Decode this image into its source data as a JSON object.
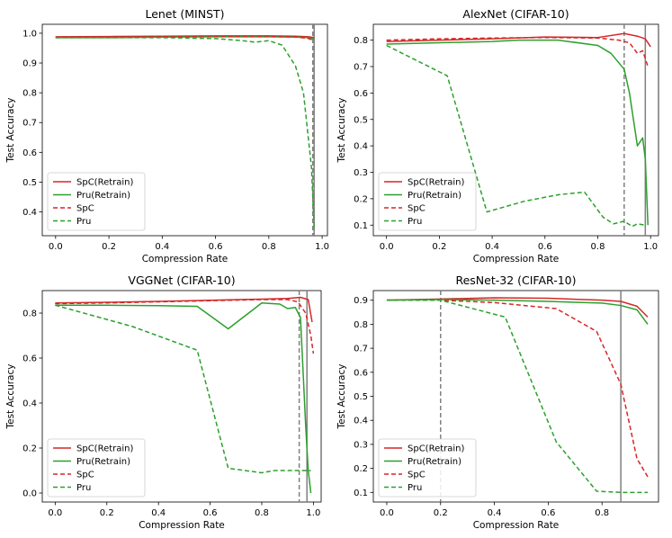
{
  "colors": {
    "spc": "#d62728",
    "pru": "#2ca02c",
    "vline": "#808080"
  },
  "legend_labels": [
    "SpC(Retrain)",
    "Pru(Retrain)",
    "SpC",
    "Pru"
  ],
  "chart_data": [
    {
      "type": "line",
      "title": "Lenet (MINST)",
      "xlabel": "Compression Rate",
      "ylabel": "Test Accuracy",
      "xlim": [
        -0.05,
        1.02
      ],
      "ylim": [
        0.32,
        1.03
      ],
      "xticks": [
        0.0,
        0.2,
        0.4,
        0.6,
        0.8,
        1.0
      ],
      "xtick_labels": [
        "0.0",
        "0.2",
        "0.4",
        "0.6",
        "0.8",
        "1.0"
      ],
      "yticks": [
        0.4,
        0.5,
        0.6,
        0.7,
        0.8,
        0.9,
        1.0
      ],
      "ytick_labels": [
        "0.4",
        "0.5",
        "0.6",
        "0.7",
        "0.8",
        "0.9",
        "1.0"
      ],
      "vlines": [
        {
          "x": 0.965,
          "style": "dashed"
        },
        {
          "x": 0.97,
          "style": "solid"
        }
      ],
      "legend_position": "lower-left",
      "series": [
        {
          "name": "SpC(Retrain)",
          "x": [
            0.0,
            0.2,
            0.4,
            0.6,
            0.8,
            0.9,
            0.95,
            0.97
          ],
          "y": [
            0.988,
            0.989,
            0.99,
            0.991,
            0.991,
            0.99,
            0.988,
            0.985
          ]
        },
        {
          "name": "Pru(Retrain)",
          "x": [
            0.0,
            0.2,
            0.4,
            0.6,
            0.8,
            0.9,
            0.95,
            0.97
          ],
          "y": [
            0.985,
            0.985,
            0.987,
            0.988,
            0.988,
            0.987,
            0.985,
            0.98
          ]
        },
        {
          "name": "SpC",
          "x": [
            0.0,
            0.2,
            0.4,
            0.6,
            0.8,
            0.9,
            0.95,
            0.97
          ],
          "y": [
            0.987,
            0.988,
            0.989,
            0.99,
            0.989,
            0.988,
            0.982,
            0.975
          ]
        },
        {
          "name": "Pru",
          "x": [
            0.0,
            0.2,
            0.4,
            0.6,
            0.7,
            0.75,
            0.8,
            0.85,
            0.9,
            0.93,
            0.96,
            0.97
          ],
          "y": [
            0.985,
            0.985,
            0.985,
            0.982,
            0.975,
            0.97,
            0.975,
            0.96,
            0.89,
            0.8,
            0.55,
            0.35
          ]
        }
      ]
    },
    {
      "type": "line",
      "title": "AlexNet (CIFAR-10)",
      "xlabel": "Compression Rate",
      "ylabel": "Test Accuracy",
      "xlim": [
        -0.05,
        1.03
      ],
      "ylim": [
        0.06,
        0.86
      ],
      "xticks": [
        0.0,
        0.2,
        0.4,
        0.6,
        0.8,
        1.0
      ],
      "xtick_labels": [
        "0.0",
        "0.2",
        "0.4",
        "0.6",
        "0.8",
        "1.0"
      ],
      "yticks": [
        0.1,
        0.2,
        0.3,
        0.4,
        0.5,
        0.6,
        0.7,
        0.8
      ],
      "ytick_labels": [
        "0.1",
        "0.2",
        "0.3",
        "0.4",
        "0.5",
        "0.6",
        "0.7",
        "0.8"
      ],
      "vlines": [
        {
          "x": 0.9,
          "style": "dashed"
        },
        {
          "x": 0.98,
          "style": "solid"
        }
      ],
      "legend_position": "lower-left",
      "series": [
        {
          "name": "SpC(Retrain)",
          "x": [
            0.0,
            0.2,
            0.4,
            0.6,
            0.8,
            0.9,
            0.95,
            0.98,
            1.0
          ],
          "y": [
            0.795,
            0.8,
            0.805,
            0.812,
            0.81,
            0.825,
            0.815,
            0.805,
            0.775
          ]
        },
        {
          "name": "Pru(Retrain)",
          "x": [
            0.0,
            0.2,
            0.4,
            0.5,
            0.65,
            0.8,
            0.85,
            0.9,
            0.92,
            0.95,
            0.97,
            0.98,
            0.99
          ],
          "y": [
            0.785,
            0.79,
            0.795,
            0.8,
            0.8,
            0.78,
            0.75,
            0.69,
            0.6,
            0.4,
            0.43,
            0.35,
            0.1
          ]
        },
        {
          "name": "SpC",
          "x": [
            0.0,
            0.2,
            0.4,
            0.6,
            0.8,
            0.88,
            0.92,
            0.95,
            0.97,
            0.99
          ],
          "y": [
            0.8,
            0.805,
            0.808,
            0.81,
            0.808,
            0.8,
            0.79,
            0.75,
            0.76,
            0.7
          ]
        },
        {
          "name": "Pru",
          "x": [
            0.0,
            0.23,
            0.38,
            0.52,
            0.65,
            0.75,
            0.82,
            0.86,
            0.9,
            0.93,
            0.95,
            0.98
          ],
          "y": [
            0.78,
            0.665,
            0.15,
            0.19,
            0.215,
            0.225,
            0.13,
            0.105,
            0.115,
            0.095,
            0.105,
            0.1
          ]
        }
      ]
    },
    {
      "type": "line",
      "title": "VGGNet (CIFAR-10)",
      "xlabel": "Compression Rate",
      "ylabel": "Test Accuracy",
      "xlim": [
        -0.05,
        1.03
      ],
      "ylim": [
        -0.04,
        0.9
      ],
      "xticks": [
        0.0,
        0.2,
        0.4,
        0.6,
        0.8,
        1.0
      ],
      "xtick_labels": [
        "0.0",
        "0.2",
        "0.4",
        "0.6",
        "0.8",
        "1.0"
      ],
      "yticks": [
        0.0,
        0.2,
        0.4,
        0.6,
        0.8
      ],
      "ytick_labels": [
        "0.0",
        "0.2",
        "0.4",
        "0.6",
        "0.8"
      ],
      "vlines": [
        {
          "x": 0.945,
          "style": "dashed"
        },
        {
          "x": 0.975,
          "style": "solid"
        }
      ],
      "legend_position": "lower-left",
      "series": [
        {
          "name": "SpC(Retrain)",
          "x": [
            0.0,
            0.2,
            0.4,
            0.6,
            0.8,
            0.9,
            0.95,
            0.98,
            0.995
          ],
          "y": [
            0.845,
            0.848,
            0.852,
            0.857,
            0.862,
            0.865,
            0.87,
            0.86,
            0.76
          ]
        },
        {
          "name": "Pru(Retrain)",
          "x": [
            0.0,
            0.2,
            0.4,
            0.55,
            0.67,
            0.8,
            0.87,
            0.9,
            0.93,
            0.95,
            0.97,
            0.98,
            0.99
          ],
          "y": [
            0.835,
            0.835,
            0.833,
            0.83,
            0.73,
            0.845,
            0.84,
            0.82,
            0.825,
            0.78,
            0.3,
            0.1,
            0.0
          ]
        },
        {
          "name": "SpC",
          "x": [
            0.0,
            0.2,
            0.4,
            0.6,
            0.8,
            0.9,
            0.94,
            0.97,
            0.99,
            1.0
          ],
          "y": [
            0.842,
            0.845,
            0.85,
            0.855,
            0.86,
            0.86,
            0.85,
            0.8,
            0.7,
            0.62
          ]
        },
        {
          "name": "Pru",
          "x": [
            0.0,
            0.3,
            0.55,
            0.67,
            0.8,
            0.85,
            0.9,
            0.95,
            0.99
          ],
          "y": [
            0.835,
            0.74,
            0.635,
            0.11,
            0.09,
            0.1,
            0.1,
            0.1,
            0.1
          ]
        }
      ]
    },
    {
      "type": "line",
      "title": "ResNet-32 (CIFAR-10)",
      "xlabel": "Compression Rate",
      "ylabel": "Test Accuracy",
      "xlim": [
        -0.05,
        1.01
      ],
      "ylim": [
        0.06,
        0.94
      ],
      "xticks": [
        0.0,
        0.2,
        0.4,
        0.6,
        0.8
      ],
      "xtick_labels": [
        "0.0",
        "0.2",
        "0.4",
        "0.6",
        "0.8"
      ],
      "yticks": [
        0.1,
        0.2,
        0.3,
        0.4,
        0.5,
        0.6,
        0.7,
        0.8,
        0.9
      ],
      "ytick_labels": [
        "0.1",
        "0.2",
        "0.3",
        "0.4",
        "0.5",
        "0.6",
        "0.7",
        "0.8",
        "0.9"
      ],
      "vlines": [
        {
          "x": 0.2,
          "style": "dashed"
        },
        {
          "x": 0.87,
          "style": "solid"
        }
      ],
      "legend_position": "lower-left",
      "series": [
        {
          "name": "SpC(Retrain)",
          "x": [
            0.0,
            0.2,
            0.4,
            0.6,
            0.8,
            0.87,
            0.93,
            0.97
          ],
          "y": [
            0.9,
            0.905,
            0.91,
            0.908,
            0.9,
            0.895,
            0.875,
            0.83
          ]
        },
        {
          "name": "Pru(Retrain)",
          "x": [
            0.0,
            0.2,
            0.4,
            0.6,
            0.8,
            0.87,
            0.93,
            0.97
          ],
          "y": [
            0.9,
            0.903,
            0.9,
            0.895,
            0.888,
            0.878,
            0.86,
            0.8
          ]
        },
        {
          "name": "SpC",
          "x": [
            0.0,
            0.2,
            0.4,
            0.63,
            0.78,
            0.87,
            0.93,
            0.97
          ],
          "y": [
            0.9,
            0.9,
            0.89,
            0.865,
            0.77,
            0.55,
            0.24,
            0.165
          ]
        },
        {
          "name": "Pru",
          "x": [
            0.0,
            0.2,
            0.44,
            0.63,
            0.78,
            0.87,
            0.97
          ],
          "y": [
            0.9,
            0.9,
            0.83,
            0.31,
            0.105,
            0.1,
            0.1
          ]
        }
      ]
    }
  ]
}
